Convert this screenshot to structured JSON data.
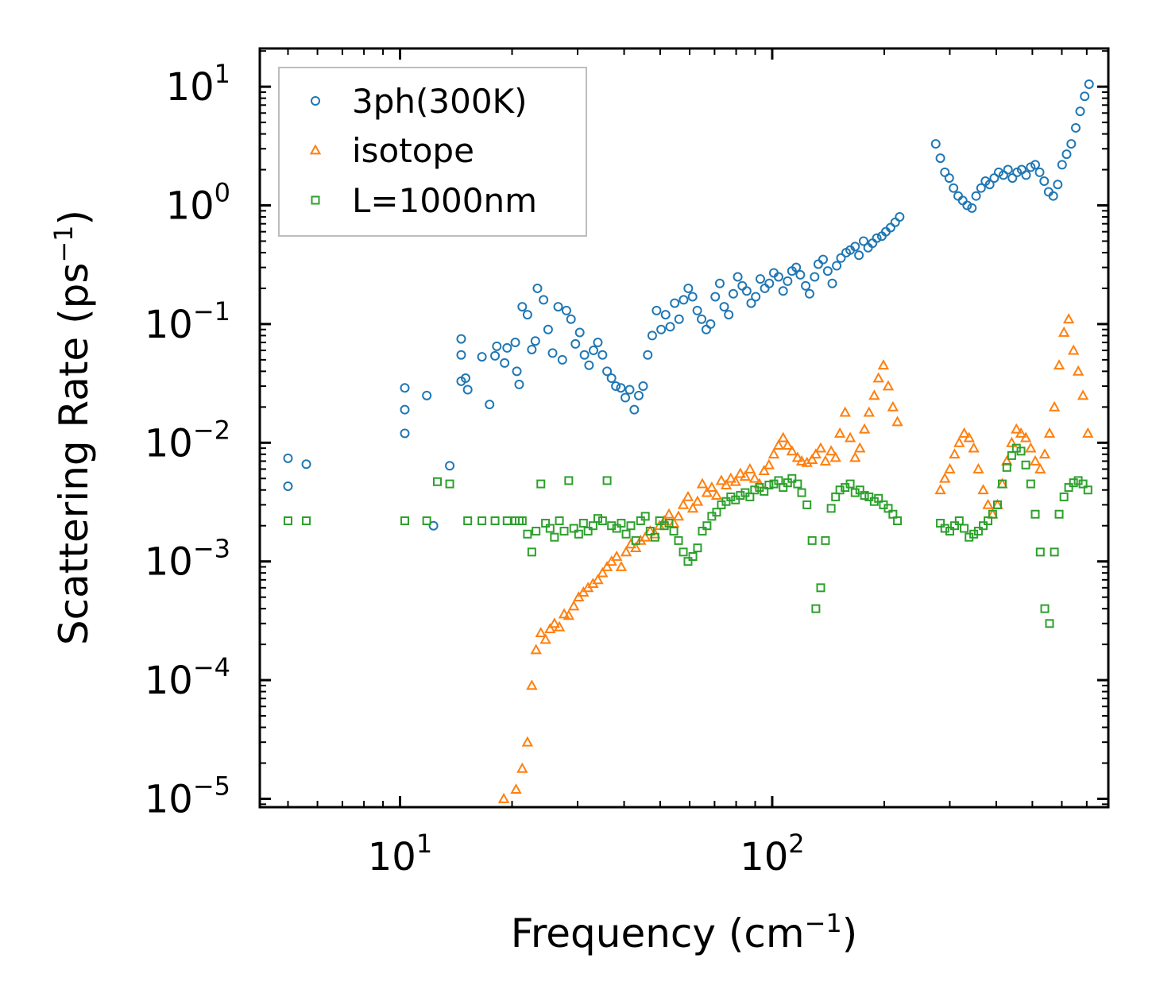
{
  "chart_data": {
    "type": "scatter",
    "xscale": "log",
    "yscale": "log",
    "xlim": [
      4.2,
      800
    ],
    "ylim": [
      8.5e-06,
      21
    ],
    "xlabel": {
      "text": "Frequency (cm",
      "sup": "−1",
      "close": ")"
    },
    "ylabel": {
      "text": "Scattering Rate (ps",
      "sup": "−1",
      "close": ")"
    },
    "x_ticks": [
      {
        "value": 10,
        "base": "10",
        "exp": "1"
      },
      {
        "value": 100,
        "base": "10",
        "exp": "2"
      }
    ],
    "y_ticks": [
      {
        "value": 10,
        "base": "10",
        "exp": "1"
      },
      {
        "value": 1,
        "base": "10",
        "exp": "0"
      },
      {
        "value": 0.1,
        "base": "10",
        "exp": "−1"
      },
      {
        "value": 0.01,
        "base": "10",
        "exp": "−2"
      },
      {
        "value": 0.001,
        "base": "10",
        "exp": "−3"
      },
      {
        "value": 0.0001,
        "base": "10",
        "exp": "−4"
      },
      {
        "value": 1e-05,
        "base": "10",
        "exp": "−5"
      }
    ],
    "legend_position": "top-left",
    "series": [
      {
        "name": "3ph(300K)",
        "marker": "circle",
        "color": "#1f77b4",
        "x": [
          5.0,
          5.0,
          5.6,
          10.3,
          10.3,
          10.3,
          11.8,
          12.3,
          13.6,
          14.6,
          14.6,
          14.6,
          15.0,
          15.2,
          16.6,
          17.4,
          18.0,
          18.2,
          19.1,
          19.4,
          20.4,
          20.6,
          20.9,
          21.3,
          22.0,
          22.6,
          23.1,
          23.4,
          24.3,
          25.0,
          25.7,
          26.6,
          27.3,
          28.0,
          28.8,
          29.6,
          30.4,
          31.3,
          32.2,
          33.1,
          34.0,
          35.0,
          36.0,
          37.0,
          38.0,
          39.2,
          40.3,
          41.4,
          42.6,
          43.8,
          45.0,
          46.3,
          47.6,
          48.9,
          50.3,
          51.7,
          53.2,
          54.7,
          56.2,
          57.8,
          59.5,
          61.1,
          62.9,
          64.6,
          66.5,
          68.3,
          70.3,
          72.3,
          74.3,
          76.4,
          78.6,
          80.8,
          83.1,
          85.4,
          87.8,
          90.3,
          92.9,
          95.5,
          98.2,
          101,
          104,
          107,
          110,
          113,
          116,
          119,
          123,
          126,
          130,
          133,
          137,
          141,
          145,
          149,
          153,
          158,
          162,
          167,
          171,
          176,
          181,
          186,
          191,
          197,
          202,
          208,
          214,
          220,
          275,
          283,
          291,
          299,
          307,
          316,
          325,
          334,
          344,
          353,
          364,
          374,
          384,
          395,
          406,
          418,
          430,
          442,
          455,
          468,
          481,
          495,
          509,
          523,
          538,
          553,
          569,
          585,
          601,
          618,
          636,
          654,
          672,
          691,
          710
        ],
        "y": [
          0.0074,
          0.0043,
          0.0066,
          0.029,
          0.019,
          0.012,
          0.025,
          0.002,
          0.0064,
          0.075,
          0.055,
          0.033,
          0.035,
          0.028,
          0.053,
          0.021,
          0.054,
          0.065,
          0.047,
          0.063,
          0.07,
          0.04,
          0.031,
          0.14,
          0.12,
          0.061,
          0.072,
          0.2,
          0.16,
          0.09,
          0.057,
          0.14,
          0.05,
          0.13,
          0.11,
          0.068,
          0.085,
          0.055,
          0.045,
          0.06,
          0.07,
          0.055,
          0.04,
          0.035,
          0.03,
          0.029,
          0.024,
          0.028,
          0.019,
          0.025,
          0.03,
          0.055,
          0.08,
          0.13,
          0.09,
          0.12,
          0.095,
          0.15,
          0.11,
          0.16,
          0.2,
          0.17,
          0.13,
          0.11,
          0.09,
          0.1,
          0.17,
          0.22,
          0.14,
          0.12,
          0.18,
          0.25,
          0.21,
          0.19,
          0.15,
          0.17,
          0.24,
          0.2,
          0.22,
          0.27,
          0.25,
          0.19,
          0.23,
          0.28,
          0.3,
          0.26,
          0.21,
          0.18,
          0.25,
          0.32,
          0.35,
          0.28,
          0.22,
          0.31,
          0.36,
          0.4,
          0.42,
          0.45,
          0.38,
          0.5,
          0.44,
          0.48,
          0.53,
          0.55,
          0.6,
          0.65,
          0.72,
          0.8,
          3.3,
          2.5,
          1.9,
          1.7,
          1.4,
          1.2,
          1.1,
          1.0,
          0.95,
          1.2,
          1.4,
          1.6,
          1.5,
          1.7,
          1.9,
          1.8,
          2.0,
          1.7,
          1.9,
          2.0,
          1.8,
          2.1,
          2.2,
          1.9,
          1.6,
          1.3,
          1.2,
          1.5,
          2.2,
          2.7,
          3.3,
          4.5,
          6.2,
          8.3,
          10.5
        ]
      },
      {
        "name": "isotope",
        "marker": "triangle",
        "color": "#ff7f0e",
        "x": [
          19.0,
          20.5,
          21.3,
          22.0,
          22.6,
          23.2,
          23.9,
          24.6,
          25.3,
          26.0,
          26.8,
          27.6,
          28.4,
          29.3,
          30.2,
          31.1,
          32.0,
          33.0,
          34.0,
          35.0,
          36.0,
          37.0,
          38.2,
          39.3,
          40.5,
          41.7,
          43.0,
          44.3,
          45.6,
          47.0,
          48.4,
          49.8,
          51.3,
          52.8,
          54.4,
          56.0,
          57.7,
          59.4,
          61.2,
          63.0,
          64.9,
          66.8,
          68.8,
          70.9,
          73.0,
          75.2,
          77.4,
          79.7,
          82.1,
          84.6,
          87.1,
          89.7,
          92.4,
          95.1,
          98.0,
          101,
          104,
          107,
          110,
          113,
          117,
          120,
          124,
          128,
          131,
          135,
          139,
          144,
          148,
          152,
          157,
          162,
          167,
          172,
          177,
          182,
          188,
          193,
          199,
          205,
          211,
          217,
          283,
          291,
          300,
          309,
          318,
          328,
          338,
          348,
          358,
          369,
          380,
          391,
          403,
          415,
          427,
          440,
          453,
          466,
          480,
          495,
          509,
          525,
          540,
          556,
          573,
          590,
          608,
          626,
          645,
          664,
          684,
          705
        ],
        "y": [
          1e-05,
          1.2e-05,
          1.8e-05,
          3e-05,
          9e-05,
          0.00018,
          0.00025,
          0.00022,
          0.00027,
          0.0003,
          0.00028,
          0.00036,
          0.00035,
          0.00042,
          0.0005,
          0.00055,
          0.0006,
          0.00065,
          0.0007,
          0.0008,
          0.0009,
          0.001,
          0.0011,
          0.0009,
          0.0012,
          0.0014,
          0.0013,
          0.0015,
          0.0016,
          0.0018,
          0.0017,
          0.002,
          0.0022,
          0.0025,
          0.0021,
          0.0024,
          0.003,
          0.0035,
          0.0028,
          0.0032,
          0.0045,
          0.0038,
          0.0042,
          0.0036,
          0.0048,
          0.0044,
          0.005,
          0.0047,
          0.0055,
          0.0052,
          0.006,
          0.005,
          0.0045,
          0.0058,
          0.0065,
          0.008,
          0.0095,
          0.011,
          0.0095,
          0.0085,
          0.0075,
          0.007,
          0.0068,
          0.0072,
          0.008,
          0.009,
          0.007,
          0.0085,
          0.0075,
          0.012,
          0.018,
          0.011,
          0.0075,
          0.009,
          0.013,
          0.018,
          0.025,
          0.035,
          0.045,
          0.03,
          0.02,
          0.015,
          0.004,
          0.005,
          0.006,
          0.008,
          0.01,
          0.012,
          0.011,
          0.009,
          0.006,
          0.004,
          0.003,
          0.0025,
          0.003,
          0.0045,
          0.007,
          0.01,
          0.013,
          0.012,
          0.011,
          0.009,
          0.007,
          0.006,
          0.008,
          0.012,
          0.02,
          0.045,
          0.085,
          0.11,
          0.06,
          0.04,
          0.025,
          0.012
        ]
      },
      {
        "name": "L=1000nm",
        "marker": "square",
        "color": "#2ca02c",
        "x": [
          5.0,
          5.6,
          10.3,
          11.8,
          12.6,
          13.6,
          15.2,
          16.6,
          18.0,
          19.4,
          20.4,
          20.9,
          21.3,
          22.0,
          22.6,
          23.2,
          23.9,
          24.6,
          25.3,
          26.0,
          26.8,
          27.6,
          28.4,
          29.3,
          30.2,
          31.1,
          32.0,
          33.0,
          34.0,
          35.0,
          36.0,
          37.0,
          38.2,
          39.3,
          40.5,
          41.7,
          43.0,
          44.3,
          45.6,
          47.0,
          48.4,
          49.8,
          51.3,
          52.8,
          54.4,
          56.0,
          57.7,
          59.4,
          61.2,
          63.0,
          64.9,
          66.8,
          68.8,
          70.9,
          73.0,
          75.2,
          77.4,
          79.7,
          82.1,
          84.6,
          87.1,
          89.7,
          92.4,
          95.1,
          98.0,
          101,
          104,
          107,
          110,
          113,
          117,
          120,
          124,
          128,
          131,
          135,
          139,
          144,
          148,
          152,
          157,
          162,
          167,
          172,
          177,
          182,
          188,
          193,
          199,
          205,
          211,
          217,
          283,
          291,
          300,
          309,
          318,
          328,
          338,
          348,
          358,
          369,
          380,
          391,
          403,
          415,
          427,
          440,
          453,
          466,
          480,
          495,
          509,
          525,
          540,
          556,
          573,
          590,
          608,
          626,
          645,
          664,
          684,
          705
        ],
        "y": [
          0.0022,
          0.0022,
          0.0022,
          0.0022,
          0.0047,
          0.0045,
          0.0022,
          0.0022,
          0.0022,
          0.0022,
          0.0022,
          0.0022,
          0.0022,
          0.0017,
          0.0012,
          0.0018,
          0.0045,
          0.0021,
          0.0019,
          0.0016,
          0.0022,
          0.0018,
          0.0048,
          0.0019,
          0.0017,
          0.0021,
          0.0018,
          0.002,
          0.0023,
          0.0022,
          0.0048,
          0.002,
          0.0019,
          0.0021,
          0.0017,
          0.002,
          0.0015,
          0.0022,
          0.0024,
          0.0018,
          0.0016,
          0.0022,
          0.002,
          0.0021,
          0.0018,
          0.0015,
          0.0012,
          0.001,
          0.0011,
          0.0013,
          0.0018,
          0.002,
          0.0024,
          0.0026,
          0.003,
          0.0032,
          0.0035,
          0.0033,
          0.0036,
          0.0038,
          0.0035,
          0.004,
          0.0042,
          0.0039,
          0.0044,
          0.0045,
          0.0048,
          0.0042,
          0.0046,
          0.005,
          0.0045,
          0.0038,
          0.003,
          0.0015,
          0.0004,
          0.0006,
          0.0015,
          0.0028,
          0.0035,
          0.004,
          0.0042,
          0.0045,
          0.0038,
          0.004,
          0.0036,
          0.0035,
          0.0032,
          0.0034,
          0.003,
          0.0028,
          0.0025,
          0.0022,
          0.0021,
          0.0019,
          0.0018,
          0.002,
          0.0022,
          0.0019,
          0.0016,
          0.0017,
          0.0018,
          0.002,
          0.0022,
          0.0025,
          0.003,
          0.0045,
          0.0062,
          0.0078,
          0.009,
          0.0085,
          0.0065,
          0.0045,
          0.0025,
          0.0012,
          0.0004,
          0.0003,
          0.0012,
          0.0025,
          0.0035,
          0.0042,
          0.0046,
          0.0048,
          0.0045,
          0.004
        ]
      }
    ]
  }
}
